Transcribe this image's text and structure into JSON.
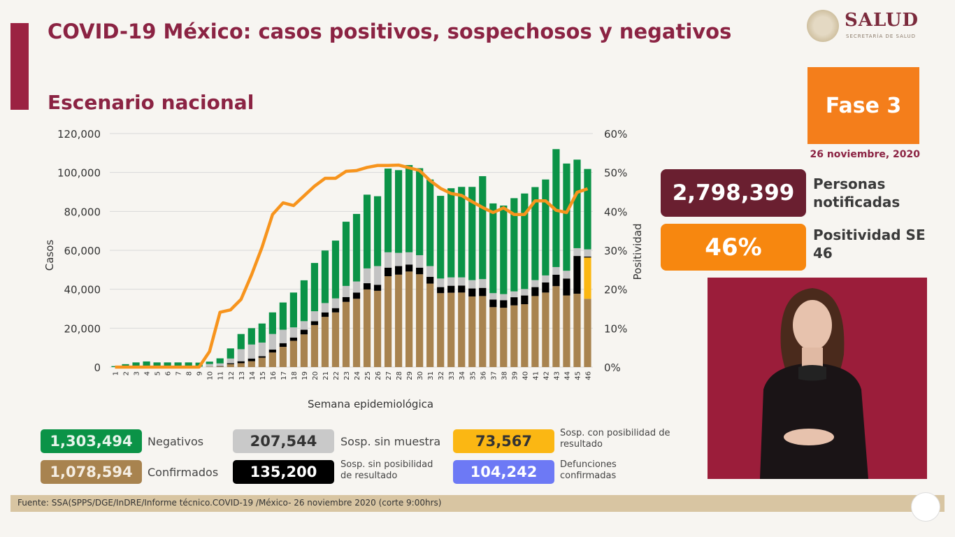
{
  "header": {
    "title": "COVID-19 México: casos positivos, sospechosos y negativos",
    "subtitle": "Escenario nacional"
  },
  "logo": {
    "word": "SALUD",
    "sub": "SECRETARÍA DE SALUD"
  },
  "phase": {
    "label": "Fase 3",
    "date": "26 noviembre, 2020"
  },
  "kpis": {
    "notified_value": "2,798,399",
    "notified_label": "Personas notificadas",
    "positivity_value": "46%",
    "positivity_label": "Positividad SE 46"
  },
  "legend": {
    "negativos": {
      "value": "1,303,494",
      "label": "Negativos"
    },
    "confirmados": {
      "value": "1,078,594",
      "label": "Confirmados"
    },
    "sin_muestra": {
      "value": "207,544",
      "label": "Sosp. sin muestra"
    },
    "sin_posibilidad": {
      "value": "135,200",
      "label": "Sosp. sin posibilidad de resultado"
    },
    "con_posibilidad": {
      "value": "73,567",
      "label": "Sosp. con posibilidad de resultado"
    },
    "defunciones": {
      "value": "104,242",
      "label": "Defunciones confirmadas"
    }
  },
  "footer": {
    "source": "Fuente: SSA(SPPS/DGE/InDRE/Informe técnico.COVID-19 /México- 26 noviembre 2020 (corte 9:00hrs)"
  },
  "colors": {
    "confirmados": "#a8834f",
    "con_posibilidad": "#fbb713",
    "sin_posibilidad": "#000000",
    "sin_muestra": "#c3c3c3",
    "negativos": "#0b9347",
    "positividad": "#f7941d",
    "defunciones": "#6d79f5",
    "brand": "#8b2343"
  },
  "chart_data": {
    "type": "bar",
    "stacked": true,
    "xlabel": "Semana epidemiológica",
    "ylabel": "Casos",
    "y2label": "Positividad",
    "ylim": [
      0,
      120000
    ],
    "y2lim": [
      0,
      60
    ],
    "yticks": [
      "0",
      "20,000",
      "40,000",
      "60,000",
      "80,000",
      "100,000",
      "120,000"
    ],
    "y2ticks": [
      "0%",
      "10%",
      "20%",
      "30%",
      "40%",
      "50%",
      "60%"
    ],
    "grid": true,
    "categories": [
      "1",
      "2",
      "3",
      "4",
      "5",
      "6",
      "7",
      "8",
      "9",
      "10",
      "11",
      "12",
      "13",
      "14",
      "15",
      "16",
      "17",
      "18",
      "19",
      "20",
      "21",
      "22",
      "23",
      "24",
      "25",
      "26",
      "27",
      "28",
      "29",
      "30",
      "31",
      "32",
      "33",
      "34",
      "35",
      "36",
      "37",
      "38",
      "39",
      "40",
      "41",
      "42",
      "43",
      "44",
      "45",
      "46"
    ],
    "series": [
      {
        "name": "Confirmados",
        "key": "confirmados",
        "values": [
          0,
          0,
          0,
          0,
          0,
          0,
          0,
          0,
          100,
          200,
          300,
          1500,
          2000,
          3000,
          4800,
          7500,
          10400,
          13500,
          16800,
          21600,
          25800,
          28100,
          33500,
          35100,
          39900,
          39200,
          46700,
          47500,
          49100,
          47700,
          42900,
          38000,
          38200,
          38300,
          36300,
          36500,
          30800,
          30500,
          31700,
          32300,
          36500,
          38300,
          41600,
          36800,
          37700,
          35100
        ]
      },
      {
        "name": "Sosp. con posibilidad de resultado",
        "key": "con_posibilidad",
        "values": [
          0,
          0,
          0,
          0,
          0,
          0,
          0,
          0,
          0,
          0,
          0,
          0,
          0,
          0,
          0,
          0,
          0,
          0,
          0,
          0,
          0,
          0,
          0,
          0,
          0,
          0,
          0,
          0,
          0,
          0,
          0,
          0,
          0,
          0,
          0,
          0,
          0,
          0,
          0,
          0,
          0,
          0,
          0,
          0,
          0,
          21200
        ]
      },
      {
        "name": "Sosp. sin posibilidad de resultado",
        "key": "sin_posibilidad",
        "values": [
          0,
          0,
          0,
          0,
          0,
          0,
          0,
          0,
          0,
          0,
          200,
          500,
          1000,
          1400,
          800,
          1500,
          1900,
          1700,
          2400,
          2000,
          2300,
          2200,
          2500,
          3200,
          3200,
          3100,
          4400,
          4400,
          3600,
          3400,
          3500,
          3100,
          3600,
          3600,
          4100,
          4200,
          3900,
          3900,
          4200,
          4500,
          4600,
          5200,
          5900,
          8700,
          19400,
          500
        ]
      },
      {
        "name": "Sosp. sin muestra",
        "key": "sin_muestra",
        "values": [
          0,
          100,
          100,
          100,
          100,
          100,
          100,
          100,
          200,
          1400,
          1400,
          2400,
          6200,
          7200,
          7000,
          8000,
          6900,
          5200,
          4400,
          5100,
          4800,
          5000,
          5700,
          5700,
          7600,
          9600,
          7900,
          6800,
          6300,
          6400,
          5500,
          4400,
          4300,
          4200,
          4300,
          4500,
          3300,
          3100,
          3000,
          3300,
          3600,
          3600,
          3900,
          4000,
          4000,
          3700
        ]
      },
      {
        "name": "Negativos",
        "key": "negativos",
        "values": [
          500,
          1400,
          2300,
          2800,
          2300,
          2300,
          2300,
          2300,
          2000,
          1200,
          2600,
          5200,
          7800,
          8400,
          9800,
          11100,
          14000,
          17900,
          21000,
          24800,
          27000,
          29700,
          33000,
          34700,
          37900,
          35900,
          43000,
          42500,
          44800,
          44700,
          44500,
          42500,
          45800,
          46500,
          47900,
          52900,
          46100,
          45500,
          47900,
          49100,
          47800,
          49300,
          60600,
          55100,
          45500,
          41300
        ]
      }
    ],
    "line": {
      "name": "Positividad",
      "axis": "right",
      "values": [
        0,
        0,
        0,
        0,
        0,
        0,
        0,
        0,
        0,
        4,
        14.1,
        14.7,
        17.4,
        23.7,
        30.8,
        39.2,
        42.2,
        41.5,
        44,
        46.5,
        48.5,
        48.5,
        50.3,
        50.5,
        51.3,
        51.8,
        51.8,
        51.9,
        51.2,
        50.5,
        47.9,
        45.9,
        44.6,
        44.1,
        42.5,
        41,
        39.7,
        40.9,
        39.2,
        39.2,
        42.7,
        42.7,
        40.3,
        39.7,
        44.9,
        45.8
      ]
    }
  }
}
